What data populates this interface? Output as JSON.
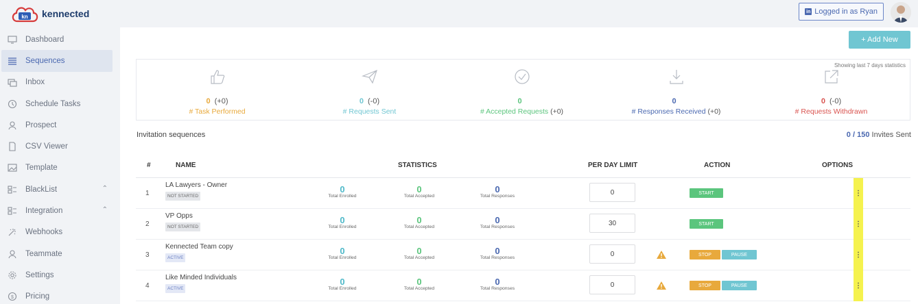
{
  "app": {
    "brand": "kennected",
    "logo_mark": "kn"
  },
  "sidebar": {
    "items": [
      {
        "label": "Dashboard",
        "icon": "monitor-icon"
      },
      {
        "label": "Sequences",
        "icon": "list-icon",
        "active": true
      },
      {
        "label": "Inbox",
        "icon": "inbox-icon"
      },
      {
        "label": "Schedule Tasks",
        "icon": "clock-icon"
      },
      {
        "label": "Prospect",
        "icon": "person-icon"
      },
      {
        "label": "CSV Viewer",
        "icon": "file-icon"
      },
      {
        "label": "Template",
        "icon": "image-icon"
      },
      {
        "label": "BlackList",
        "icon": "blacklist-icon",
        "expandable": true
      },
      {
        "label": "Integration",
        "icon": "integration-icon",
        "expandable": true
      },
      {
        "label": "Webhooks",
        "icon": "webhooks-icon"
      },
      {
        "label": "Teammate",
        "icon": "teammate-icon"
      },
      {
        "label": "Settings",
        "icon": "gear-icon"
      },
      {
        "label": "Pricing",
        "icon": "dollar-icon"
      }
    ]
  },
  "header": {
    "logged_in": "Logged in as Ryan",
    "linkedin_glyph": "in"
  },
  "actions": {
    "add_new": "+ Add New"
  },
  "stats": {
    "note": "Showing last 7 days statistics",
    "items": [
      {
        "value": "0",
        "delta": "(+0)",
        "label": "# Task Performed",
        "label_suffix": "",
        "color": "#e8a93c",
        "icon": "thumbs-up-icon"
      },
      {
        "value": "0",
        "delta": "(-0)",
        "label": "# Requests Sent",
        "label_suffix": "",
        "color": "#70c6d2",
        "icon": "paper-plane-icon"
      },
      {
        "value": "0",
        "delta": "",
        "label": "# Accepted Requests",
        "label_suffix": "(+0)",
        "color": "#5bc57d",
        "icon": "check-circle-icon"
      },
      {
        "value": "0",
        "delta": "",
        "label": "# Responses Received",
        "label_suffix": "(+0)",
        "color": "#4a68b0",
        "icon": "download-icon"
      },
      {
        "value": "0",
        "delta": "(-0)",
        "label": "# Requests Withdrawn",
        "label_suffix": "",
        "color": "#d9534f",
        "icon": "external-link-icon"
      }
    ]
  },
  "section": {
    "title": "Invitation sequences",
    "invites_used": "0",
    "invites_total": "/ 150",
    "invites_label": "Invites Sent"
  },
  "table": {
    "headers": {
      "num": "#",
      "name": "NAME",
      "statistics": "STATISTICS",
      "limit": "PER DAY LIMIT",
      "action": "ACTION",
      "options": "OPTIONS"
    },
    "stat_labels": {
      "enrolled": "Total Enrolled",
      "accepted": "Total Accepted",
      "responses": "Total Responses"
    },
    "rows": [
      {
        "index": "1",
        "name": "LA Lawyers - Owner",
        "status": "NOT STARTED",
        "enrolled": "0",
        "accepted": "0",
        "responses": "0",
        "limit": "0",
        "start": "START"
      },
      {
        "index": "2",
        "name": "VP Opps",
        "status": "NOT STARTED",
        "enrolled": "0",
        "accepted": "0",
        "responses": "0",
        "limit": "30",
        "start": "START"
      },
      {
        "index": "3",
        "name": "Kennected Team copy",
        "status": "ACTIVE",
        "enrolled": "0",
        "accepted": "0",
        "responses": "0",
        "limit": "0",
        "stop": "STOP",
        "pause": "PAUSE"
      },
      {
        "index": "4",
        "name": "Like Minded Individuals",
        "status": "ACTIVE",
        "enrolled": "0",
        "accepted": "0",
        "responses": "0",
        "limit": "0",
        "stop": "STOP",
        "pause": "PAUSE"
      }
    ]
  },
  "colors": {
    "enrolled": "#4fb9c9",
    "accepted": "#5bc57d",
    "responses": "#4a68b0",
    "options_highlight": "#f5f24e"
  }
}
